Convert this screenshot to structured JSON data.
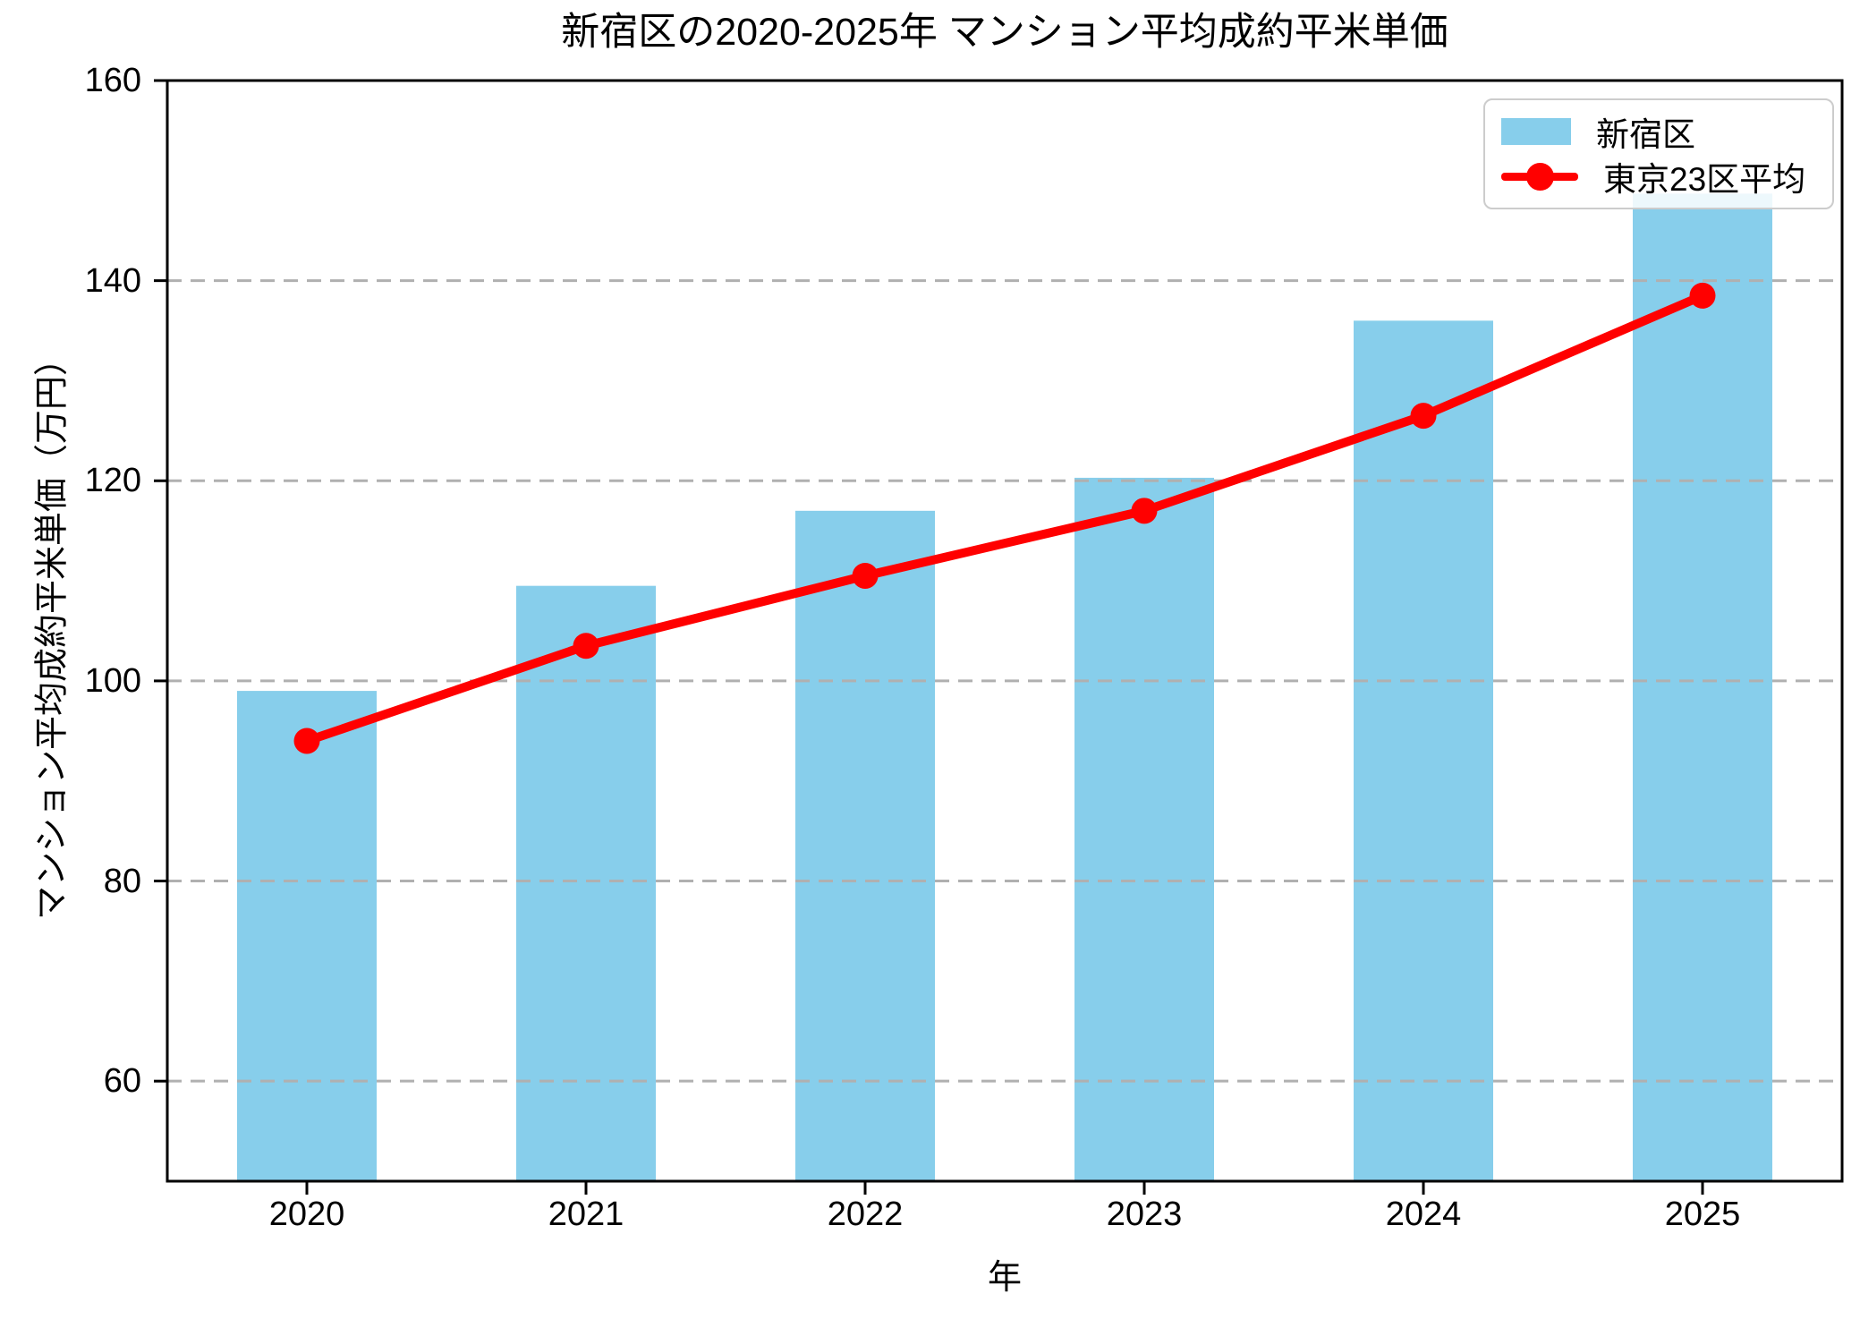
{
  "title": "新宿区の2020-2025年 マンション平均成約平米単価",
  "chart_data": {
    "type": "bar+line",
    "title": "新宿区の2020-2025年 マンション平均成約平米単価",
    "xlabel": "年",
    "ylabel": "マンション平均成約平米単価（万円）",
    "categories": [
      "2020",
      "2021",
      "2022",
      "2023",
      "2024",
      "2025"
    ],
    "series": [
      {
        "name": "新宿区",
        "type": "bar",
        "color": "#87CEEB",
        "values": [
          99.0,
          109.5,
          117.0,
          120.3,
          136.0,
          148.7
        ]
      },
      {
        "name": "東京23区平均",
        "type": "line",
        "marker": "circle",
        "color": "#FF0000",
        "values": [
          94.0,
          103.5,
          110.5,
          117.0,
          126.5,
          138.5
        ]
      }
    ],
    "ylim": [
      50,
      160
    ],
    "yticks": [
      60,
      80,
      100,
      120,
      140,
      160
    ],
    "grid": {
      "axis": "y",
      "style": "dashed",
      "color": "#b0b0b0"
    },
    "axis_color": "#000000",
    "legend_position": "upper right"
  }
}
